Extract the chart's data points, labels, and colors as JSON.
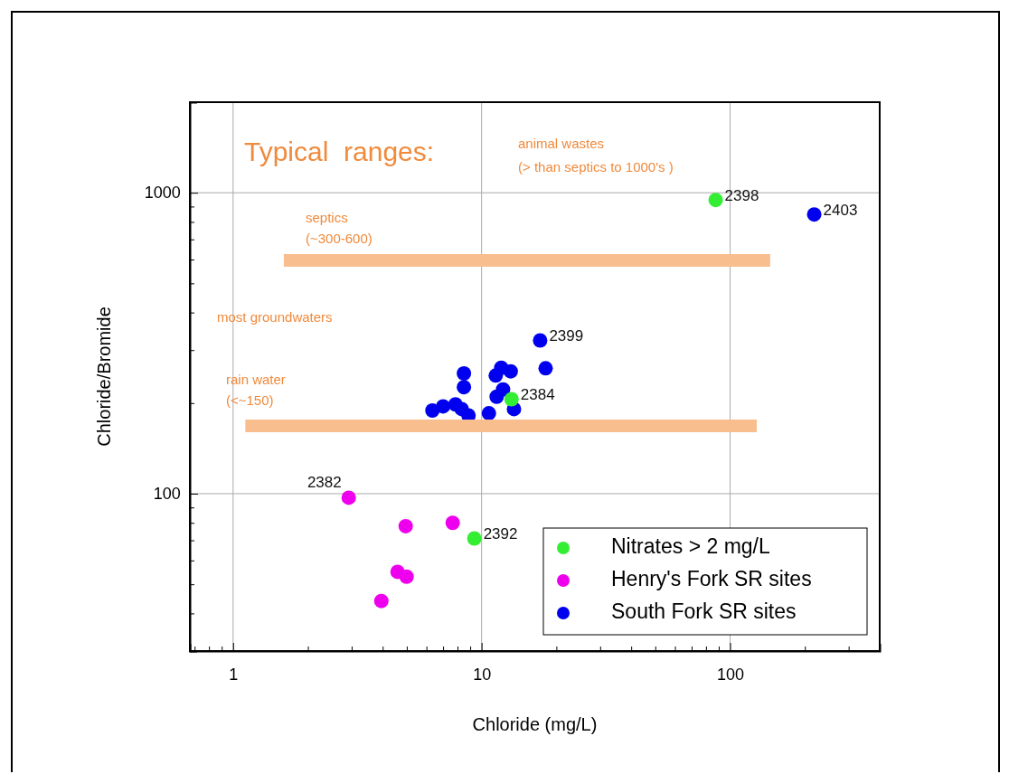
{
  "chart_data": {
    "type": "scatter",
    "xlabel": "Chloride (mg/L)",
    "ylabel": "Chloride/Bromide",
    "log": "xy",
    "grid": true,
    "legend": "bottom right",
    "xlim": [
      0.67,
      400
    ],
    "ylim": [
      30,
      2000
    ],
    "xticks": [
      {
        "value": 0.7,
        "label": null
      },
      {
        "value": 0.8,
        "label": null
      },
      {
        "value": 0.9,
        "label": null
      },
      1,
      {
        "value": 2,
        "label": null
      },
      {
        "value": 3,
        "label": null
      },
      {
        "value": 4,
        "label": null
      },
      {
        "value": 5,
        "label": null
      },
      {
        "value": 6,
        "label": null
      },
      {
        "value": 7,
        "label": null
      },
      {
        "value": 8,
        "label": null
      },
      {
        "value": 9,
        "label": null
      },
      10,
      {
        "value": 20,
        "label": null
      },
      {
        "value": 30,
        "label": null
      },
      {
        "value": 40,
        "label": null
      },
      {
        "value": 50,
        "label": null
      },
      {
        "value": 60,
        "label": null
      },
      {
        "value": 70,
        "label": null
      },
      {
        "value": 80,
        "label": null
      },
      {
        "value": 90,
        "label": null
      },
      100,
      {
        "value": 200,
        "label": null
      },
      {
        "value": 300,
        "label": null
      }
    ],
    "yticks": [
      {
        "value": 40,
        "label": null
      },
      {
        "value": 50,
        "label": null
      },
      {
        "value": 60,
        "label": null
      },
      {
        "value": 70,
        "label": null
      },
      {
        "value": 80,
        "label": null
      },
      {
        "value": 90,
        "label": null
      },
      100,
      {
        "value": 200,
        "label": null
      },
      {
        "value": 300,
        "label": null
      },
      {
        "value": 400,
        "label": null
      },
      {
        "value": 500,
        "label": null
      },
      {
        "value": 600,
        "label": null
      },
      {
        "value": 700,
        "label": null
      },
      {
        "value": 800,
        "label": null
      },
      {
        "value": 900,
        "label": null
      },
      1000
    ],
    "series": [
      {
        "type": "line",
        "color": "#f9be8e",
        "x": [
          1.6,
          145
        ],
        "values": [
          596,
          596
        ]
      },
      {
        "type": "line",
        "color": "#f9be8e",
        "x": [
          1.12,
          128
        ],
        "values": [
          168,
          168
        ]
      },
      {
        "name": "Nitrates > 2 mg/L",
        "color": "#33ee33",
        "marker": "circle",
        "x": [
          87.5,
          13.2,
          9.35
        ],
        "values": [
          946,
          206,
          71
        ]
      },
      {
        "name": "Henry's Fork SR sites",
        "color": "#ee00ee",
        "marker": "circle",
        "x": [
          2.92,
          4.95,
          7.65,
          4.59,
          4.99,
          3.95
        ],
        "values": [
          97,
          78,
          80,
          55,
          53,
          44
        ]
      },
      {
        "name": "South Fork SR sites",
        "color": "#0000ee",
        "marker": "circle",
        "x": [
          218,
          17.2,
          18.1,
          8.49,
          8.49,
          11.4,
          12.0,
          13.1,
          12.2,
          11.5,
          13.5,
          6.34,
          7.0,
          7.85,
          8.32,
          8.86,
          10.7
        ],
        "values": [
          847,
          323,
          261,
          251,
          226,
          247,
          262,
          255,
          222,
          210,
          191,
          189,
          195,
          198,
          191,
          182,
          185
        ]
      }
    ],
    "annotations": [
      "Typical  ranges:",
      "animal wastes",
      "(> than septics to 1000's )",
      "septics",
      "(~300-600)",
      "most groundwaters",
      "rain water",
      "(<~150)",
      {
        "text": "2398",
        "x": 87.5,
        "y": 946
      },
      {
        "text": "2403",
        "x": 218,
        "y": 847
      },
      {
        "text": "2399",
        "x": 17.2,
        "y": 323
      },
      {
        "text": "2384",
        "x": 13.2,
        "y": 206
      },
      {
        "text": "2392",
        "x": 9.35,
        "y": 71
      },
      {
        "text": "2382",
        "x": 2.92,
        "y": 97
      }
    ]
  }
}
